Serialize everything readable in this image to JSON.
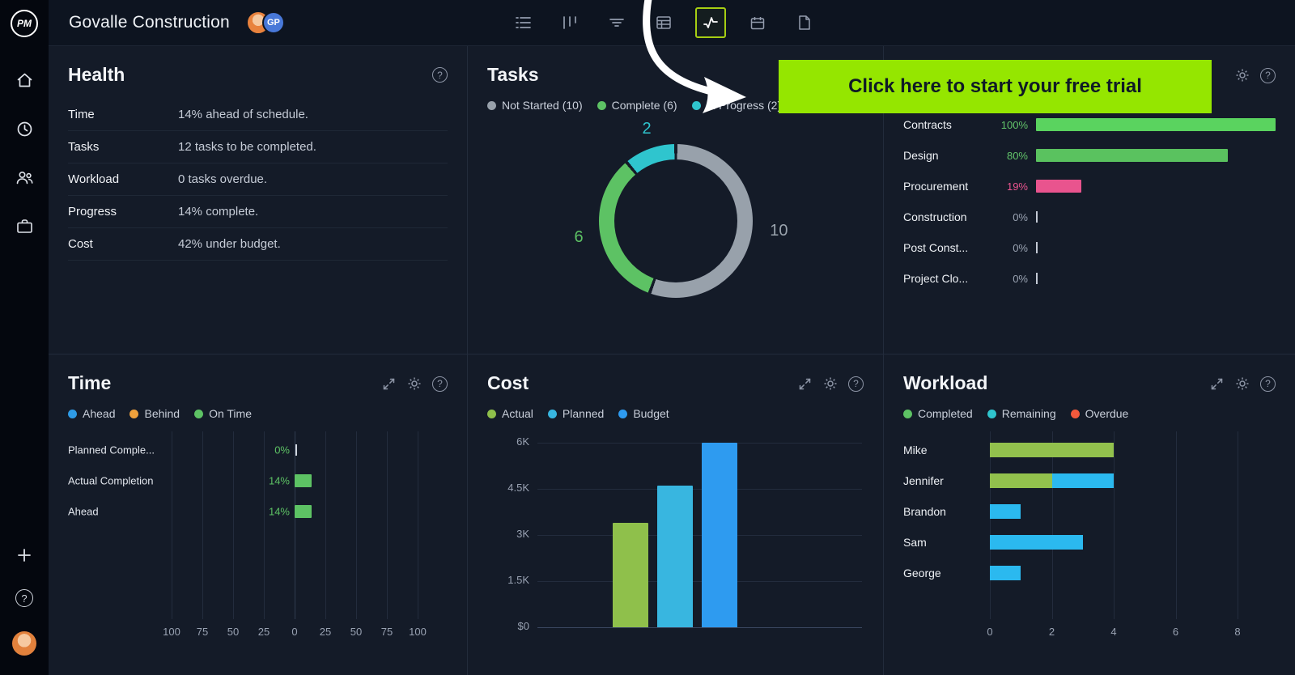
{
  "app": {
    "logo": "PM",
    "topbar": {
      "title": "Govalle Construction",
      "avatar_badge": "GP",
      "tools": [
        "list",
        "columns",
        "filter",
        "table",
        "chart",
        "calendar",
        "document"
      ],
      "active_tool": "chart"
    }
  },
  "icons": {
    "help": "?"
  },
  "banner": {
    "label": "Click here to start your free trial",
    "bg": "#95e600",
    "text_color": "#0f1a26"
  },
  "health": {
    "title": "Health",
    "rows": [
      {
        "label": "Time",
        "value": "14% ahead of schedule."
      },
      {
        "label": "Tasks",
        "value": "12 tasks to be completed."
      },
      {
        "label": "Workload",
        "value": "0 tasks overdue."
      },
      {
        "label": "Progress",
        "value": "14% complete."
      },
      {
        "label": "Cost",
        "value": "42% under budget."
      }
    ]
  },
  "tasks": {
    "title": "Tasks",
    "legend": [
      {
        "label": "Not Started (10)",
        "color": "#98a1ab"
      },
      {
        "label": "Complete (6)",
        "color": "#5dc264"
      },
      {
        "label": "In Progress (2)",
        "color": "#2fc5ce"
      }
    ],
    "chart_data": {
      "type": "donut",
      "segments": [
        {
          "label": "Not Started",
          "value": 10,
          "color": "#98a1ab"
        },
        {
          "label": "Complete",
          "value": 6,
          "color": "#5dc264"
        },
        {
          "label": "In Progress",
          "value": 2,
          "color": "#2fc5ce"
        }
      ],
      "callouts": [
        {
          "text": "2",
          "color": "#2fc5ce",
          "pos": "top"
        },
        {
          "text": "6",
          "color": "#5dc264",
          "pos": "left"
        },
        {
          "text": "10",
          "color": "#9aa3ad",
          "pos": "right"
        }
      ]
    }
  },
  "progress": {
    "rows": [
      {
        "label": "Contracts",
        "percent": "100%",
        "value": 100,
        "bar_color": "#5ad35f",
        "text_color": "#62c46a"
      },
      {
        "label": "Design",
        "percent": "80%",
        "value": 80,
        "bar_color": "#5ac25f",
        "text_color": "#62c46a"
      },
      {
        "label": "Procurement",
        "percent": "19%",
        "value": 19,
        "bar_color": "#e9548e",
        "text_color": "#e9548e"
      },
      {
        "label": "Construction",
        "percent": "0%",
        "value": 0,
        "bar_color": "",
        "text_color": "#9aa3b2"
      },
      {
        "label": "Post Const...",
        "percent": "0%",
        "value": 0,
        "bar_color": "",
        "text_color": "#9aa3b2"
      },
      {
        "label": "Project Clo...",
        "percent": "0%",
        "value": 0,
        "bar_color": "",
        "text_color": "#9aa3b2"
      }
    ]
  },
  "time": {
    "title": "Time",
    "legend": [
      {
        "label": "Ahead",
        "color": "#2e9be6"
      },
      {
        "label": "Behind",
        "color": "#efa13c"
      },
      {
        "label": "On Time",
        "color": "#5dc264"
      }
    ],
    "chart_data": {
      "type": "bar",
      "orientation": "horizontal",
      "rows": [
        {
          "label": "Planned Comple...",
          "percent": "0%",
          "value": 0
        },
        {
          "label": "Actual Completion",
          "percent": "14%",
          "value": 14
        },
        {
          "label": "Ahead",
          "percent": "14%",
          "value": 14
        }
      ],
      "bar_color": "#5dc264",
      "value_color": "#5dc264",
      "axis_ticks": [
        "100",
        "75",
        "50",
        "25",
        "0",
        "25",
        "50",
        "75",
        "100"
      ],
      "xlim": [
        -100,
        100
      ]
    }
  },
  "cost": {
    "title": "Cost",
    "legend": [
      {
        "label": "Actual",
        "color": "#8fc04b"
      },
      {
        "label": "Planned",
        "color": "#38b6e0"
      },
      {
        "label": "Budget",
        "color": "#2e9bf0"
      }
    ],
    "chart_data": {
      "type": "bar",
      "series": [
        {
          "name": "Actual",
          "value": 3400,
          "color": "#8fc04b"
        },
        {
          "name": "Planned",
          "value": 4600,
          "color": "#38b6e0"
        },
        {
          "name": "Budget",
          "value": 6000,
          "color": "#2e9bf0"
        }
      ],
      "ytick_labels": [
        "6K",
        "4.5K",
        "3K",
        "1.5K",
        "$0"
      ],
      "ylim": [
        0,
        6000
      ]
    }
  },
  "workload": {
    "title": "Workload",
    "legend": [
      {
        "label": "Completed",
        "color": "#5dc264"
      },
      {
        "label": "Remaining",
        "color": "#2fc5ce"
      },
      {
        "label": "Overdue",
        "color": "#f4593c"
      }
    ],
    "chart_data": {
      "type": "stacked-bar",
      "orientation": "horizontal",
      "categories": [
        "Mike",
        "Jennifer",
        "Brandon",
        "Sam",
        "George"
      ],
      "series": [
        {
          "name": "Completed",
          "color": "#92c14d",
          "values": [
            4,
            2,
            0,
            0,
            0
          ]
        },
        {
          "name": "Remaining",
          "color": "#2bb9ef",
          "values": [
            0,
            2,
            1,
            3,
            1
          ]
        },
        {
          "name": "Overdue",
          "color": "#f4593c",
          "values": [
            0,
            0,
            0,
            0,
            0
          ]
        }
      ],
      "xticks": [
        "0",
        "2",
        "4",
        "6",
        "8"
      ],
      "xlim": [
        0,
        8
      ]
    }
  }
}
